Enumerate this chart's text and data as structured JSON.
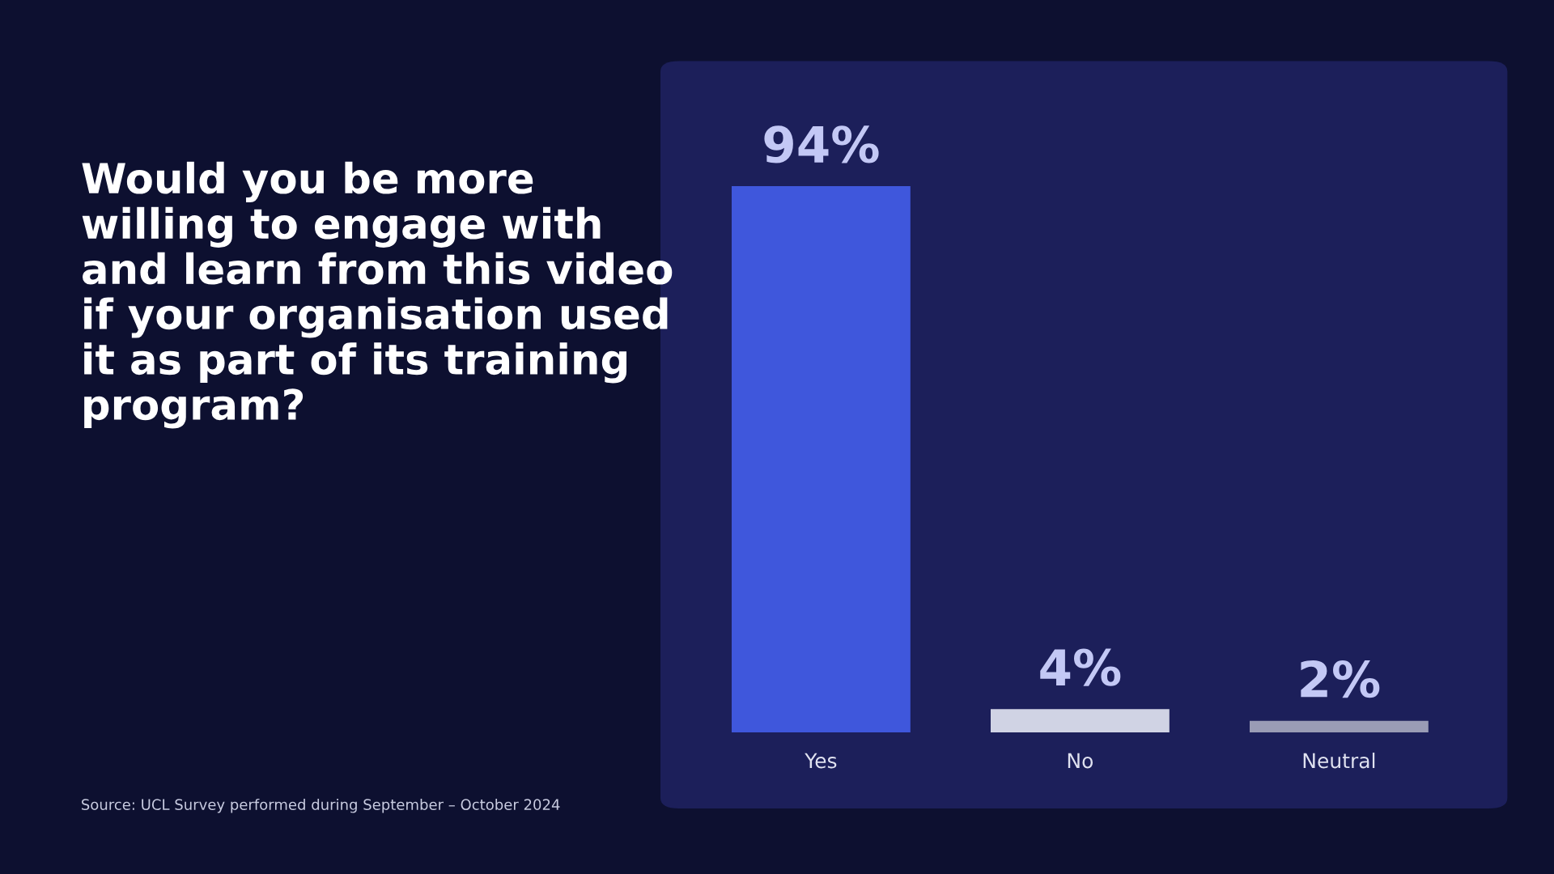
{
  "chart_data": {
    "type": "bar",
    "title": "Would you be more\nwilling to engage with\nand learn from this video\nif your organisation used\nit as part of its training\nprogram?",
    "categories": [
      "Yes",
      "No",
      "Neutral"
    ],
    "values": [
      94,
      4,
      2
    ],
    "colors": [
      "#3f57dc",
      "#d0d3e4",
      "#9a9cb5"
    ],
    "value_labels": [
      "94%",
      "4%",
      "2%"
    ],
    "annotations": [
      "Source: UCL Survey performed during September – October 2024"
    ],
    "legend": false
  }
}
